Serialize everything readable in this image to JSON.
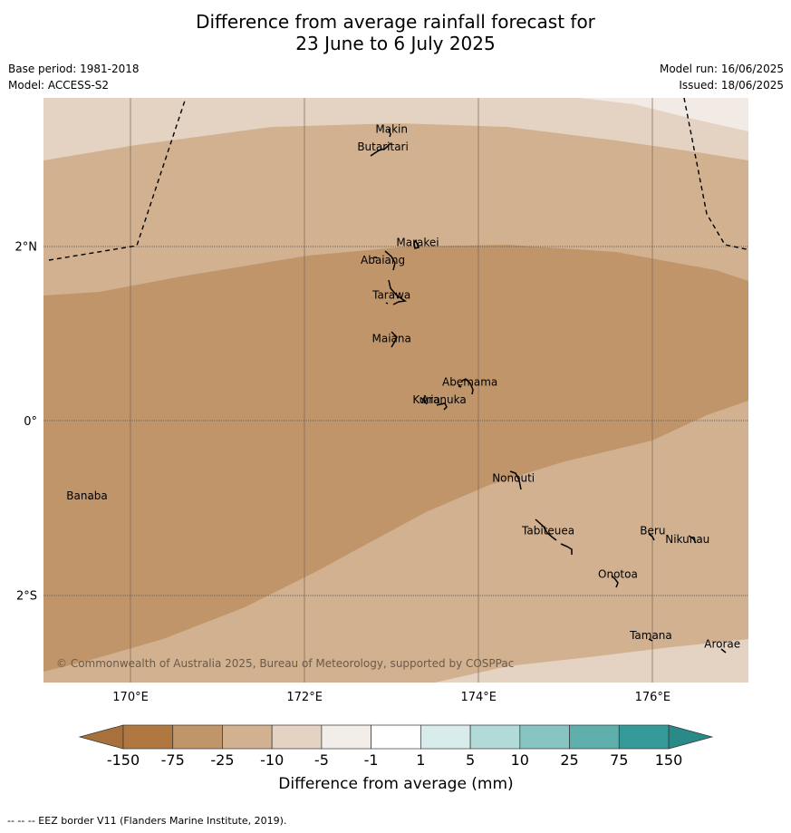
{
  "title": {
    "line1": "Difference from average rainfall forecast for",
    "line2": "23 June to 6 July 2025"
  },
  "meta": {
    "base_period": "Base period: 1981-2018",
    "model": "Model: ACCESS-S2",
    "model_run": "Model run: 16/06/2025",
    "issued": "Issued: 18/06/2025"
  },
  "map": {
    "lon_range": [
      169.0,
      177.1
    ],
    "lat_range": [
      -3.0,
      3.7
    ],
    "x_ticks": [
      {
        "value": 170,
        "label": "170°E"
      },
      {
        "value": 172,
        "label": "172°E"
      },
      {
        "value": 174,
        "label": "174°E"
      },
      {
        "value": 176,
        "label": "176°E"
      }
    ],
    "y_ticks": [
      {
        "value": 2,
        "label": "2°N"
      },
      {
        "value": 0,
        "label": "0°"
      },
      {
        "value": -2,
        "label": "2°S"
      }
    ],
    "places": [
      {
        "name": "Makin",
        "lon": 173.0,
        "lat": 3.3
      },
      {
        "name": "Butaritari",
        "lon": 172.9,
        "lat": 3.1
      },
      {
        "name": "Marakei",
        "lon": 173.3,
        "lat": 2.0
      },
      {
        "name": "Abaiang",
        "lon": 172.9,
        "lat": 1.8
      },
      {
        "name": "Tarawa",
        "lon": 173.0,
        "lat": 1.4
      },
      {
        "name": "Maiana",
        "lon": 173.0,
        "lat": 0.9
      },
      {
        "name": "Abemama",
        "lon": 173.9,
        "lat": 0.4
      },
      {
        "name": "Kuria",
        "lon": 173.4,
        "lat": 0.2
      },
      {
        "name": "Aranuka",
        "lon": 173.6,
        "lat": 0.2
      },
      {
        "name": "Nonouti",
        "lon": 174.4,
        "lat": -0.7
      },
      {
        "name": "Banaba",
        "lon": 169.5,
        "lat": -0.9
      },
      {
        "name": "Tabiteuea",
        "lon": 174.8,
        "lat": -1.3
      },
      {
        "name": "Beru",
        "lon": 176.0,
        "lat": -1.3
      },
      {
        "name": "Nikunau",
        "lon": 176.4,
        "lat": -1.4
      },
      {
        "name": "Onotoa",
        "lon": 175.6,
        "lat": -1.8
      },
      {
        "name": "Tamana",
        "lon": 175.98,
        "lat": -2.5
      },
      {
        "name": "Arorae",
        "lon": 176.8,
        "lat": -2.6
      }
    ],
    "copyright": "© Commonwealth of Australia 2025, Bureau of Meteorology, supported by COSPPac",
    "footnote": "--  --  -- EEZ border V11 (Flanders Marine Institute, 2019)."
  },
  "colorbar": {
    "title": "Difference from average (mm)",
    "labels": [
      "-150",
      "-75",
      "-25",
      "-10",
      "-5",
      "-1",
      "1",
      "5",
      "10",
      "25",
      "75",
      "150"
    ],
    "low_extend_color": "#a8703a",
    "high_extend_color": "#2a8a87",
    "colors": [
      "#b07840",
      "#c0956a",
      "#d1b190",
      "#e4d3c3",
      "#f2ede8",
      "#ffffff",
      "#d8ecec",
      "#b2dad9",
      "#86c4c2",
      "#5eaeac",
      "#349998"
    ]
  },
  "regions": {
    "colors": {
      "lightest": "#f2ebe5",
      "light": "#e4d3c3",
      "mid": "#d1b190",
      "dark": "#c0956a"
    }
  }
}
